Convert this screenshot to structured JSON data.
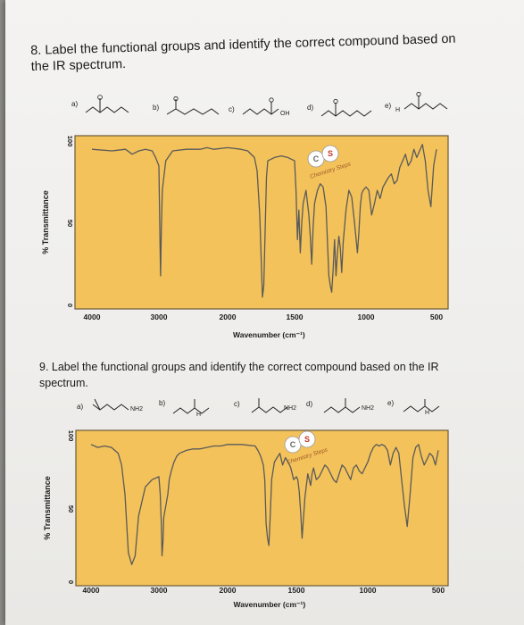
{
  "questions": [
    {
      "prompt": "8. Label the functional groups and identify the correct compound based on the IR spectrum.",
      "choices": [
        "a)",
        "b)",
        "c)",
        "d)",
        "e)"
      ],
      "molecule_labels": [
        "",
        "",
        "OH",
        "",
        "H"
      ]
    },
    {
      "prompt": "9. Label the functional groups and identify the correct compound based on the IR spectrum.",
      "choices": [
        "a)",
        "b)",
        "c)",
        "d)",
        "e)"
      ],
      "molecule_labels": [
        "NH2",
        "H",
        "NH2",
        "NH2",
        "H"
      ]
    }
  ],
  "watermark": {
    "letters": [
      "C",
      "S"
    ],
    "text": "Chemistry Steps"
  },
  "colors": {
    "plot_fill": "#f3c25a",
    "plot_border": "#6b5a3a",
    "spectrum_line": "#5a5a5a"
  },
  "chart_data": [
    {
      "type": "line",
      "xlabel": "Wavenumber (cm⁻¹)",
      "ylabel": "% Transmittance",
      "x_ticks": [
        4000,
        3000,
        2000,
        1500,
        1000,
        500
      ],
      "x_tick_labels": [
        "4000",
        "3000",
        "2000",
        "1500",
        "1000",
        "500"
      ],
      "y_ticks": [
        0,
        50,
        100
      ],
      "y_tick_labels": [
        "0",
        "50",
        "100"
      ],
      "xlim": [
        4000,
        500
      ],
      "ylim": [
        0,
        100
      ],
      "grid": false,
      "x": [
        4000,
        3700,
        3500,
        3400,
        3300,
        3200,
        3100,
        3050,
        3000,
        2985,
        2975,
        2965,
        2950,
        2900,
        2800,
        2600,
        2400,
        2300,
        2200,
        2000,
        1900,
        1850,
        1800,
        1780,
        1760,
        1748,
        1740,
        1730,
        1720,
        1710,
        1700,
        1650,
        1600,
        1550,
        1500,
        1490,
        1480,
        1470,
        1460,
        1450,
        1440,
        1420,
        1400,
        1390,
        1380,
        1370,
        1360,
        1340,
        1320,
        1300,
        1280,
        1260,
        1250,
        1240,
        1230,
        1220,
        1210,
        1200,
        1190,
        1180,
        1170,
        1160,
        1140,
        1120,
        1100,
        1080,
        1060,
        1050,
        1040,
        1030,
        1020,
        1000,
        980,
        960,
        940,
        920,
        900,
        880,
        860,
        840,
        820,
        800,
        780,
        760,
        740,
        720,
        700,
        680,
        660,
        640,
        620,
        600,
        580,
        560,
        540,
        520,
        500
      ],
      "y": [
        95,
        94,
        95,
        92,
        94,
        95,
        94,
        90,
        85,
        40,
        18,
        45,
        70,
        88,
        94,
        95,
        95,
        96,
        95,
        96,
        95,
        94,
        90,
        82,
        55,
        25,
        5,
        12,
        45,
        78,
        88,
        90,
        91,
        90,
        88,
        70,
        40,
        58,
        32,
        50,
        62,
        70,
        55,
        42,
        25,
        48,
        62,
        70,
        74,
        72,
        60,
        18,
        12,
        8,
        22,
        40,
        18,
        32,
        42,
        35,
        20,
        38,
        58,
        70,
        66,
        50,
        32,
        44,
        60,
        68,
        70,
        72,
        70,
        55,
        62,
        70,
        65,
        72,
        75,
        78,
        80,
        74,
        76,
        84,
        88,
        92,
        85,
        88,
        95,
        90,
        94,
        98,
        88,
        70,
        60,
        85,
        95
      ]
    },
    {
      "type": "line",
      "xlabel": "Wavenumber (cm⁻¹)",
      "ylabel": "% Transmittance",
      "x_ticks": [
        4000,
        3000,
        2000,
        1500,
        1000,
        500
      ],
      "x_tick_labels": [
        "4000",
        "3000",
        "2000",
        "1500",
        "1000",
        "500"
      ],
      "y_ticks": [
        0,
        50,
        100
      ],
      "y_tick_labels": [
        "0",
        "50",
        "100"
      ],
      "xlim": [
        4000,
        500
      ],
      "ylim": [
        0,
        100
      ],
      "grid": false,
      "x": [
        4000,
        3900,
        3800,
        3700,
        3600,
        3550,
        3500,
        3450,
        3400,
        3350,
        3300,
        3200,
        3100,
        3000,
        2980,
        2965,
        2955,
        2940,
        2930,
        2900,
        2870,
        2850,
        2820,
        2780,
        2740,
        2700,
        2600,
        2500,
        2400,
        2300,
        2200,
        2100,
        2000,
        1900,
        1800,
        1780,
        1760,
        1740,
        1730,
        1720,
        1710,
        1700,
        1690,
        1680,
        1660,
        1640,
        1620,
        1600,
        1580,
        1560,
        1540,
        1520,
        1500,
        1490,
        1480,
        1470,
        1460,
        1450,
        1440,
        1430,
        1420,
        1410,
        1400,
        1390,
        1380,
        1370,
        1360,
        1340,
        1320,
        1300,
        1280,
        1260,
        1240,
        1220,
        1200,
        1180,
        1160,
        1140,
        1120,
        1100,
        1080,
        1060,
        1040,
        1020,
        1000,
        980,
        960,
        940,
        920,
        900,
        880,
        860,
        840,
        820,
        800,
        780,
        760,
        740,
        720,
        700,
        680,
        660,
        640,
        620,
        600,
        580,
        560,
        540,
        520,
        500
      ],
      "y": [
        94,
        92,
        93,
        92,
        88,
        80,
        60,
        20,
        12,
        18,
        45,
        65,
        70,
        72,
        60,
        40,
        18,
        28,
        44,
        52,
        60,
        70,
        76,
        82,
        86,
        88,
        90,
        91,
        91,
        92,
        93,
        93,
        94,
        94,
        93,
        90,
        86,
        80,
        70,
        40,
        30,
        25,
        45,
        70,
        82,
        85,
        88,
        80,
        85,
        82,
        78,
        70,
        72,
        70,
        62,
        48,
        30,
        44,
        58,
        66,
        74,
        70,
        66,
        74,
        78,
        74,
        70,
        72,
        76,
        80,
        78,
        74,
        70,
        68,
        74,
        80,
        78,
        74,
        70,
        78,
        80,
        76,
        74,
        78,
        82,
        88,
        92,
        94,
        93,
        94,
        93,
        90,
        80,
        88,
        92,
        88,
        70,
        52,
        38,
        60,
        85,
        92,
        94,
        86,
        80,
        84,
        88,
        86,
        80,
        90
      ]
    }
  ]
}
